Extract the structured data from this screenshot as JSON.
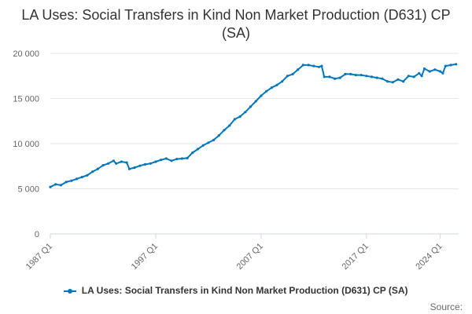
{
  "chart_data": {
    "type": "line",
    "title": "LA Uses: Social Transfers in Kind Non Market Production (D631) CP (SA)",
    "xlabel": "",
    "ylabel": "",
    "ylim": [
      0,
      20000
    ],
    "y_ticks": [
      0,
      5000,
      10000,
      15000,
      20000
    ],
    "y_tick_labels": [
      "0",
      "5 000",
      "10 000",
      "15 000",
      "20 000"
    ],
    "x_ticks": [
      "1987 Q1",
      "1997 Q1",
      "2007 Q1",
      "2017 Q1",
      "2024 Q1"
    ],
    "grid": true,
    "legend": "bottom-center",
    "credit": "Source:",
    "color": "#0077bb",
    "series": [
      {
        "name": "LA Uses: Social Transfers in Kind Non Market Production (D631) CP (SA)",
        "points": [
          [
            "1987 Q1",
            5200
          ],
          [
            "1987 Q3",
            5500
          ],
          [
            "1988 Q1",
            5400
          ],
          [
            "1988 Q3",
            5750
          ],
          [
            "1989 Q1",
            5900
          ],
          [
            "1989 Q3",
            6100
          ],
          [
            "1990 Q1",
            6300
          ],
          [
            "1990 Q3",
            6500
          ],
          [
            "1991 Q1",
            6900
          ],
          [
            "1991 Q3",
            7200
          ],
          [
            "1992 Q1",
            7600
          ],
          [
            "1992 Q3",
            7800
          ],
          [
            "1993 Q1",
            8100
          ],
          [
            "1993 Q2",
            7800
          ],
          [
            "1993 Q4",
            8000
          ],
          [
            "1994 Q2",
            7900
          ],
          [
            "1994 Q3",
            7200
          ],
          [
            "1995 Q1",
            7350
          ],
          [
            "1995 Q3",
            7550
          ],
          [
            "1996 Q1",
            7700
          ],
          [
            "1996 Q3",
            7800
          ],
          [
            "1997 Q1",
            8000
          ],
          [
            "1997 Q3",
            8200
          ],
          [
            "1998 Q1",
            8350
          ],
          [
            "1998 Q3",
            8100
          ],
          [
            "1999 Q1",
            8300
          ],
          [
            "1999 Q3",
            8350
          ],
          [
            "2000 Q1",
            8400
          ],
          [
            "2000 Q3",
            9000
          ],
          [
            "2001 Q1",
            9400
          ],
          [
            "2001 Q3",
            9800
          ],
          [
            "2002 Q1",
            10100
          ],
          [
            "2002 Q3",
            10400
          ],
          [
            "2003 Q1",
            10900
          ],
          [
            "2003 Q3",
            11500
          ],
          [
            "2004 Q1",
            12000
          ],
          [
            "2004 Q3",
            12700
          ],
          [
            "2005 Q1",
            13000
          ],
          [
            "2005 Q3",
            13500
          ],
          [
            "2006 Q1",
            14100
          ],
          [
            "2006 Q3",
            14700
          ],
          [
            "2007 Q1",
            15300
          ],
          [
            "2007 Q3",
            15800
          ],
          [
            "2008 Q1",
            16200
          ],
          [
            "2008 Q3",
            16500
          ],
          [
            "2009 Q1",
            16900
          ],
          [
            "2009 Q3",
            17500
          ],
          [
            "2010 Q1",
            17700
          ],
          [
            "2010 Q3",
            18200
          ],
          [
            "2011 Q1",
            18700
          ],
          [
            "2011 Q3",
            18700
          ],
          [
            "2012 Q1",
            18600
          ],
          [
            "2012 Q3",
            18500
          ],
          [
            "2012 Q4",
            18600
          ],
          [
            "2013 Q1",
            17400
          ],
          [
            "2013 Q3",
            17400
          ],
          [
            "2014 Q1",
            17200
          ],
          [
            "2014 Q3",
            17300
          ],
          [
            "2015 Q1",
            17700
          ],
          [
            "2015 Q3",
            17700
          ],
          [
            "2016 Q1",
            17600
          ],
          [
            "2016 Q3",
            17600
          ],
          [
            "2017 Q1",
            17500
          ],
          [
            "2017 Q3",
            17400
          ],
          [
            "2018 Q1",
            17300
          ],
          [
            "2018 Q3",
            17200
          ],
          [
            "2019 Q1",
            16900
          ],
          [
            "2019 Q3",
            16800
          ],
          [
            "2020 Q1",
            17100
          ],
          [
            "2020 Q3",
            16900
          ],
          [
            "2021 Q1",
            17500
          ],
          [
            "2021 Q3",
            17400
          ],
          [
            "2022 Q1",
            17800
          ],
          [
            "2022 Q2",
            17500
          ],
          [
            "2022 Q3",
            18300
          ],
          [
            "2023 Q1",
            18000
          ],
          [
            "2023 Q3",
            18200
          ],
          [
            "2024 Q1",
            18000
          ],
          [
            "2024 Q2",
            17800
          ],
          [
            "2024 Q3",
            18600
          ],
          [
            "2025 Q1",
            18700
          ],
          [
            "2025 Q3",
            18800
          ]
        ]
      }
    ]
  }
}
